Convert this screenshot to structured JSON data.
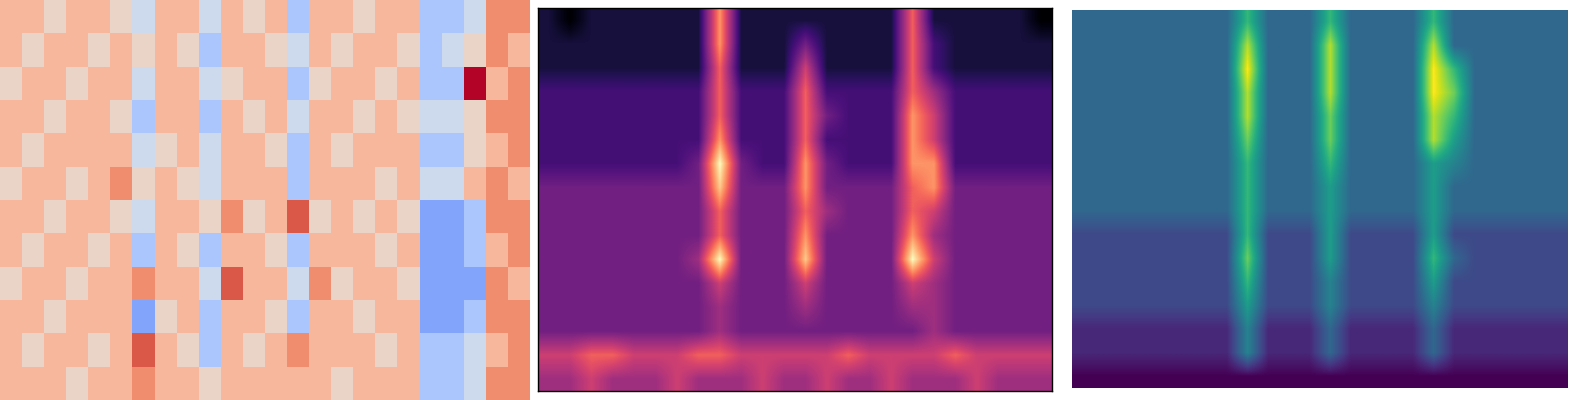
{
  "chart_data": [
    {
      "type": "heatmap",
      "color": "coolwarm",
      "tick_labels": false,
      "zlim": [
        0,
        9
      ],
      "cells": [
        [
          6,
          6,
          5,
          6,
          6,
          5,
          4,
          6,
          6,
          4,
          6,
          5,
          6,
          3,
          6,
          6,
          5,
          6,
          6,
          3,
          3,
          4,
          7,
          7
        ],
        [
          6,
          5,
          6,
          6,
          5,
          6,
          5,
          6,
          5,
          3,
          6,
          6,
          5,
          4,
          6,
          5,
          6,
          6,
          5,
          3,
          4,
          5,
          7,
          6
        ],
        [
          5,
          6,
          6,
          5,
          6,
          6,
          4,
          6,
          6,
          4,
          5,
          6,
          6,
          3,
          5,
          6,
          6,
          5,
          6,
          3,
          3,
          9,
          6,
          7
        ],
        [
          6,
          6,
          5,
          6,
          6,
          5,
          3,
          6,
          6,
          3,
          6,
          5,
          6,
          4,
          6,
          6,
          5,
          6,
          5,
          4,
          4,
          5,
          7,
          7
        ],
        [
          6,
          5,
          6,
          6,
          6,
          6,
          4,
          5,
          6,
          4,
          6,
          6,
          5,
          3,
          6,
          5,
          6,
          6,
          6,
          3,
          3,
          5,
          6,
          7
        ],
        [
          5,
          6,
          6,
          5,
          6,
          7,
          5,
          6,
          5,
          4,
          6,
          6,
          6,
          3,
          6,
          6,
          6,
          5,
          6,
          4,
          4,
          6,
          7,
          6
        ],
        [
          6,
          6,
          5,
          6,
          6,
          5,
          4,
          6,
          6,
          5,
          7,
          5,
          6,
          8,
          5,
          6,
          5,
          6,
          5,
          2,
          2,
          3,
          7,
          7
        ],
        [
          6,
          5,
          6,
          6,
          5,
          6,
          3,
          6,
          5,
          3,
          6,
          6,
          5,
          3,
          6,
          6,
          6,
          5,
          6,
          2,
          2,
          3,
          6,
          7
        ],
        [
          5,
          6,
          6,
          5,
          6,
          6,
          7,
          6,
          6,
          4,
          8,
          6,
          6,
          4,
          7,
          5,
          6,
          6,
          5,
          2,
          2,
          2,
          7,
          6
        ],
        [
          6,
          6,
          5,
          6,
          6,
          6,
          2,
          5,
          6,
          3,
          6,
          6,
          5,
          3,
          6,
          6,
          5,
          6,
          6,
          2,
          2,
          3,
          7,
          7
        ],
        [
          6,
          5,
          6,
          6,
          5,
          6,
          8,
          6,
          5,
          3,
          6,
          5,
          6,
          7,
          6,
          6,
          6,
          5,
          6,
          3,
          3,
          4,
          6,
          7
        ],
        [
          6,
          6,
          6,
          5,
          6,
          6,
          7,
          6,
          6,
          5,
          6,
          6,
          6,
          6,
          6,
          5,
          6,
          6,
          6,
          3,
          3,
          4,
          7,
          7
        ]
      ]
    },
    {
      "type": "heatmap",
      "color": "magma",
      "tick_labels": false,
      "zlim": [
        0,
        9
      ],
      "cells": [
        [
          1,
          0,
          1,
          1,
          1,
          1,
          1,
          1,
          7,
          1,
          1,
          1,
          1,
          1,
          1,
          1,
          1,
          6,
          1,
          1,
          1,
          1,
          1,
          0
        ],
        [
          1,
          1,
          1,
          1,
          1,
          1,
          1,
          1,
          7,
          1,
          1,
          1,
          3,
          1,
          1,
          1,
          1,
          6,
          2,
          1,
          1,
          1,
          1,
          1
        ],
        [
          1,
          1,
          1,
          1,
          1,
          1,
          1,
          1,
          6,
          1,
          1,
          1,
          5,
          1,
          1,
          1,
          1,
          6,
          2,
          1,
          1,
          1,
          1,
          1
        ],
        [
          2,
          2,
          2,
          2,
          2,
          2,
          2,
          2,
          6,
          2,
          2,
          2,
          6,
          2,
          2,
          2,
          2,
          6,
          4,
          2,
          2,
          2,
          2,
          2
        ],
        [
          2,
          2,
          2,
          2,
          2,
          2,
          2,
          2,
          6,
          2,
          2,
          2,
          6,
          3,
          2,
          2,
          2,
          7,
          5,
          2,
          2,
          2,
          2,
          2
        ],
        [
          2,
          2,
          2,
          2,
          2,
          2,
          2,
          2,
          7,
          2,
          2,
          2,
          6,
          2,
          2,
          2,
          2,
          7,
          5,
          2,
          2,
          2,
          2,
          2
        ],
        [
          2,
          2,
          2,
          2,
          2,
          2,
          2,
          3,
          9,
          3,
          2,
          2,
          7,
          3,
          2,
          2,
          2,
          7,
          7,
          2,
          2,
          2,
          2,
          2
        ],
        [
          3,
          3,
          3,
          3,
          3,
          3,
          3,
          3,
          8,
          3,
          3,
          3,
          7,
          3,
          3,
          3,
          3,
          6,
          7,
          3,
          3,
          3,
          3,
          3
        ],
        [
          3,
          3,
          3,
          3,
          3,
          3,
          3,
          3,
          6,
          3,
          3,
          3,
          6,
          4,
          3,
          3,
          3,
          6,
          5,
          3,
          3,
          3,
          3,
          3
        ],
        [
          3,
          3,
          3,
          3,
          3,
          3,
          3,
          3,
          6,
          3,
          3,
          3,
          7,
          3,
          3,
          3,
          3,
          7,
          4,
          3,
          3,
          3,
          3,
          3
        ],
        [
          3,
          3,
          3,
          3,
          3,
          3,
          3,
          4,
          9,
          3,
          3,
          3,
          8,
          3,
          3,
          3,
          3,
          9,
          5,
          3,
          3,
          3,
          3,
          3
        ],
        [
          3,
          3,
          3,
          3,
          3,
          3,
          3,
          3,
          5,
          3,
          3,
          3,
          5,
          3,
          3,
          3,
          3,
          5,
          4,
          3,
          3,
          3,
          3,
          3
        ],
        [
          3,
          3,
          3,
          3,
          3,
          3,
          3,
          3,
          4,
          3,
          3,
          3,
          4,
          3,
          3,
          3,
          3,
          4,
          4,
          3,
          3,
          3,
          3,
          3
        ],
        [
          3,
          3,
          3,
          3,
          3,
          3,
          3,
          3,
          4,
          3,
          3,
          3,
          3,
          3,
          3,
          3,
          3,
          3,
          4,
          3,
          3,
          3,
          3,
          3
        ],
        [
          5,
          5,
          6,
          6,
          5,
          5,
          5,
          6,
          6,
          5,
          5,
          5,
          5,
          5,
          6,
          5,
          5,
          5,
          5,
          6,
          5,
          5,
          5,
          5
        ],
        [
          4,
          4,
          5,
          4,
          4,
          4,
          5,
          4,
          4,
          4,
          5,
          4,
          4,
          5,
          4,
          4,
          5,
          4,
          4,
          4,
          5,
          4,
          4,
          4
        ]
      ]
    },
    {
      "type": "heatmap",
      "color": "viridis",
      "tick_labels": false,
      "zlim": [
        0,
        9
      ],
      "cells": [
        [
          3,
          3,
          3,
          3,
          3,
          3,
          3,
          3,
          6,
          3,
          3,
          3,
          6,
          3,
          3,
          3,
          3,
          6,
          3,
          3,
          3,
          3,
          3,
          3
        ],
        [
          3,
          3,
          3,
          3,
          3,
          3,
          3,
          3,
          8,
          3,
          3,
          3,
          8,
          3,
          3,
          3,
          3,
          8,
          3,
          3,
          3,
          3,
          3,
          3
        ],
        [
          3,
          3,
          3,
          3,
          3,
          3,
          3,
          3,
          9,
          3,
          3,
          3,
          8,
          3,
          3,
          3,
          3,
          9,
          6,
          3,
          3,
          3,
          3,
          3
        ],
        [
          3,
          3,
          3,
          3,
          3,
          3,
          3,
          3,
          8,
          3,
          3,
          3,
          8,
          3,
          3,
          3,
          3,
          9,
          7,
          3,
          3,
          3,
          3,
          3
        ],
        [
          3,
          3,
          3,
          3,
          3,
          3,
          3,
          3,
          8,
          3,
          3,
          3,
          7,
          3,
          3,
          3,
          3,
          8,
          6,
          3,
          3,
          3,
          3,
          3
        ],
        [
          3,
          3,
          3,
          3,
          3,
          3,
          3,
          3,
          7,
          3,
          3,
          3,
          7,
          3,
          3,
          3,
          3,
          8,
          5,
          3,
          3,
          3,
          3,
          3
        ],
        [
          3,
          3,
          3,
          3,
          3,
          3,
          3,
          3,
          6,
          3,
          3,
          3,
          6,
          3,
          3,
          3,
          3,
          5,
          4,
          3,
          3,
          3,
          3,
          3
        ],
        [
          3,
          3,
          3,
          3,
          3,
          3,
          3,
          3,
          6,
          3,
          3,
          3,
          5,
          3,
          3,
          3,
          3,
          5,
          3,
          3,
          3,
          3,
          3,
          3
        ],
        [
          3,
          3,
          3,
          3,
          3,
          3,
          3,
          3,
          6,
          3,
          3,
          3,
          5,
          3,
          3,
          3,
          3,
          5,
          3,
          3,
          3,
          3,
          3,
          3
        ],
        [
          2,
          2,
          2,
          2,
          2,
          2,
          2,
          2,
          6,
          2,
          2,
          2,
          5,
          2,
          2,
          2,
          2,
          5,
          2,
          2,
          2,
          2,
          2,
          2
        ],
        [
          2,
          2,
          2,
          2,
          2,
          2,
          2,
          2,
          7,
          2,
          2,
          2,
          5,
          2,
          2,
          2,
          2,
          6,
          3,
          2,
          2,
          2,
          2,
          2
        ],
        [
          2,
          2,
          2,
          2,
          2,
          2,
          2,
          2,
          6,
          2,
          2,
          2,
          4,
          2,
          2,
          2,
          2,
          5,
          2,
          2,
          2,
          2,
          2,
          2
        ],
        [
          2,
          2,
          2,
          2,
          2,
          2,
          2,
          2,
          5,
          2,
          2,
          2,
          4,
          2,
          2,
          2,
          2,
          4,
          2,
          2,
          2,
          2,
          2,
          2
        ],
        [
          1,
          1,
          1,
          1,
          1,
          1,
          1,
          1,
          4,
          1,
          1,
          1,
          3,
          1,
          1,
          1,
          1,
          3,
          1,
          1,
          1,
          1,
          1,
          1
        ],
        [
          1,
          1,
          1,
          1,
          1,
          1,
          1,
          1,
          4,
          1,
          1,
          1,
          3,
          1,
          1,
          1,
          1,
          3,
          1,
          1,
          1,
          1,
          1,
          1
        ],
        [
          0,
          0,
          0,
          0,
          0,
          0,
          0,
          0,
          0,
          0,
          0,
          0,
          0,
          0,
          0,
          0,
          0,
          0,
          0,
          0,
          0,
          0,
          0,
          0
        ]
      ]
    }
  ]
}
